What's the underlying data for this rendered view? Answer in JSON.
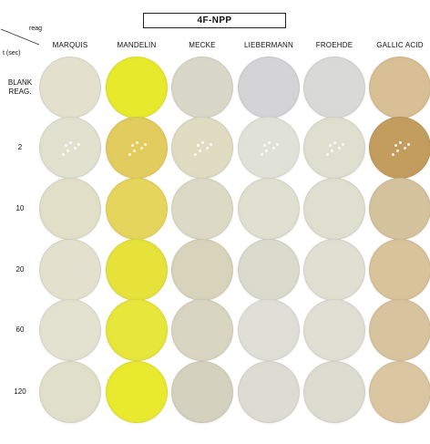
{
  "title": "4F-NPP",
  "corner": {
    "reagent_label": "reag",
    "time_label": "t (sec)"
  },
  "reagents": [
    "MARQUIS",
    "MANDELIN",
    "MECKE",
    "LIEBERMANN",
    "FROEHDE",
    "GALLIC ACID"
  ],
  "times": [
    {
      "line1": "BLANK",
      "line2": "REAG."
    },
    {
      "line1": "2",
      "line2": ""
    },
    {
      "line1": "10",
      "line2": ""
    },
    {
      "line1": "20",
      "line2": ""
    },
    {
      "line1": "60",
      "line2": ""
    },
    {
      "line1": "120",
      "line2": ""
    }
  ],
  "well_colors": [
    [
      "#e3e1ce",
      "#e7e92b",
      "#d9d8c8",
      "#d4d4d6",
      "#d9d9d7",
      "#d8bf94"
    ],
    [
      "#e1e1cf",
      "#e3cc5e",
      "#dfdcc2",
      "#e1e2d7",
      "#dfdfd0",
      "#c29d5e"
    ],
    [
      "#e1dfc8",
      "#e6d55c",
      "#dcdac4",
      "#dfe0d0",
      "#dedfcf",
      "#d4c39c"
    ],
    [
      "#e3e1cd",
      "#e6e23a",
      "#d8d4bb",
      "#dadbcc",
      "#dfdfd2",
      "#d8c39b"
    ],
    [
      "#e3e1cf",
      "#e7e63a",
      "#d8d5c1",
      "#dfdfd8",
      "#dfdfd4",
      "#d8c39f"
    ],
    [
      "#e0dfc9",
      "#e9e92e",
      "#d4d2be",
      "#dddcd3",
      "#dddcd0",
      "#dbc6a2"
    ]
  ]
}
